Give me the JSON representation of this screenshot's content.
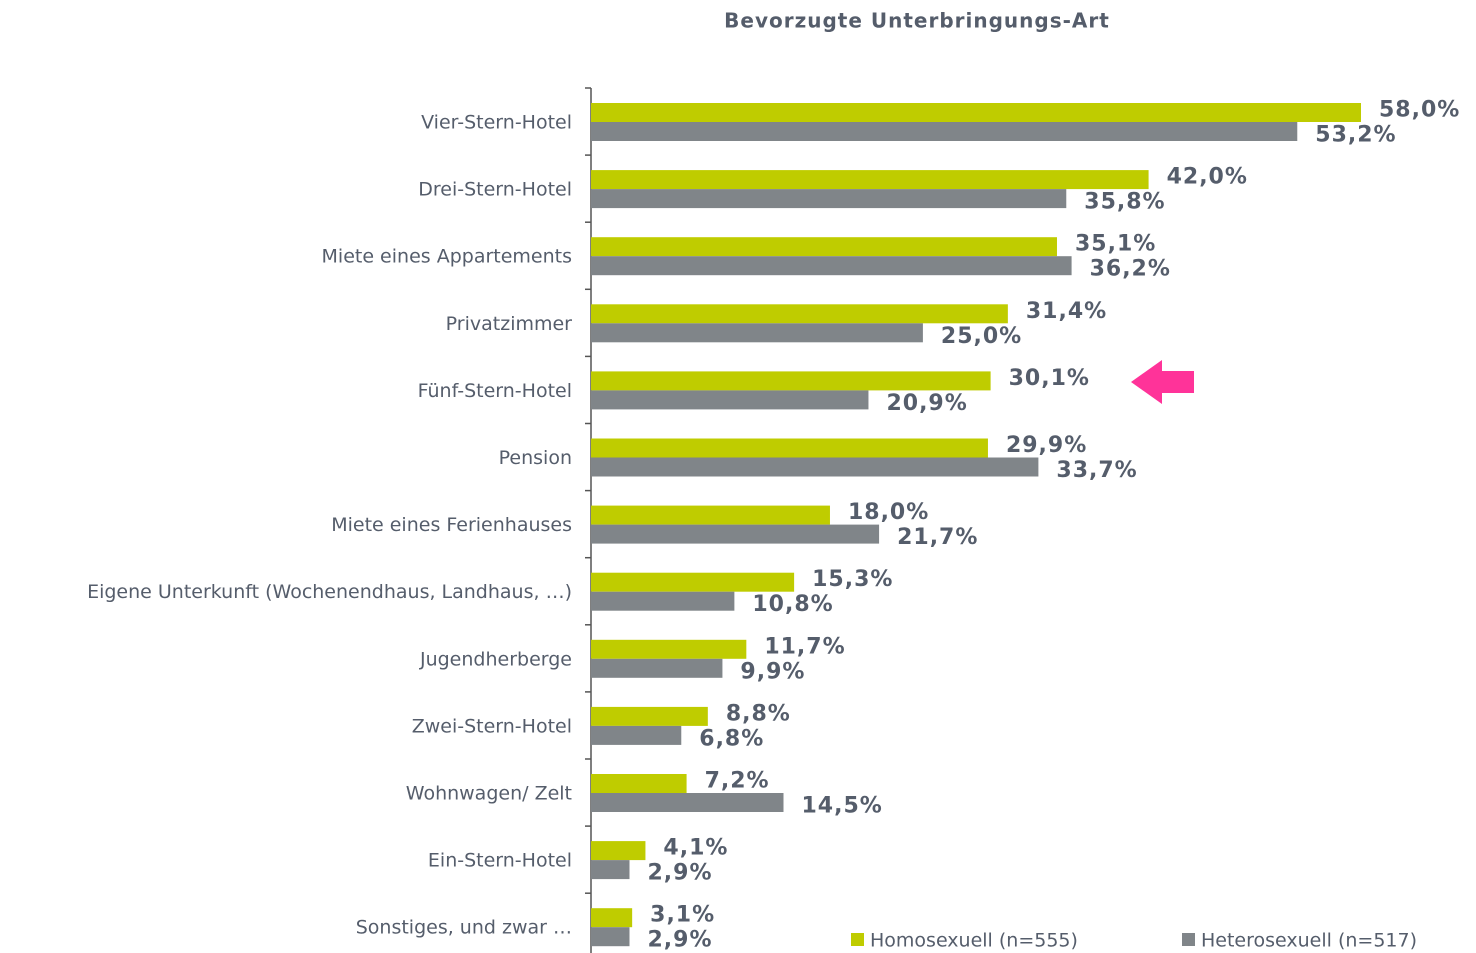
{
  "chart_data": {
    "type": "bar",
    "orientation": "horizontal",
    "title": "Bevorzugte Unterbringungs-Art",
    "categories": [
      "Vier-Stern-Hotel",
      "Drei-Stern-Hotel",
      "Miete eines Appartements",
      "Privatzimmer",
      "Fünf-Stern-Hotel",
      "Pension",
      "Miete eines Ferienhauses",
      "Eigene Unterkunft (Wochenendhaus, Landhaus, …)",
      "Jugendherberge",
      "Zwei-Stern-Hotel",
      "Wohnwagen/ Zelt",
      "Ein-Stern-Hotel",
      "Sonstiges, und zwar …"
    ],
    "series": [
      {
        "name": "Homosexuell (n=555)",
        "color": "#bfcc00",
        "values": [
          58.0,
          42.0,
          35.1,
          31.4,
          30.1,
          29.9,
          18.0,
          15.3,
          11.7,
          8.8,
          7.2,
          4.1,
          3.1
        ],
        "value_labels": [
          "58,0%",
          "42,0%",
          "35,1%",
          "31,4%",
          "30,1%",
          "29,9%",
          "18,0%",
          "15,3%",
          "11,7%",
          "8,8%",
          "7,2%",
          "4,1%",
          "3,1%"
        ]
      },
      {
        "name": "Heterosexuell (n=517)",
        "color": "#808589",
        "values": [
          53.2,
          35.8,
          36.2,
          25.0,
          20.9,
          33.7,
          21.7,
          10.8,
          9.9,
          6.8,
          14.5,
          2.9,
          2.9
        ],
        "value_labels": [
          "53,2%",
          "35,8%",
          "36,2%",
          "25,0%",
          "20,9%",
          "33,7%",
          "21,7%",
          "10,8%",
          "9,9%",
          "6,8%",
          "14,5%",
          "2,9%",
          "2,9%"
        ]
      }
    ],
    "legend": "bottom-right"
  }
}
